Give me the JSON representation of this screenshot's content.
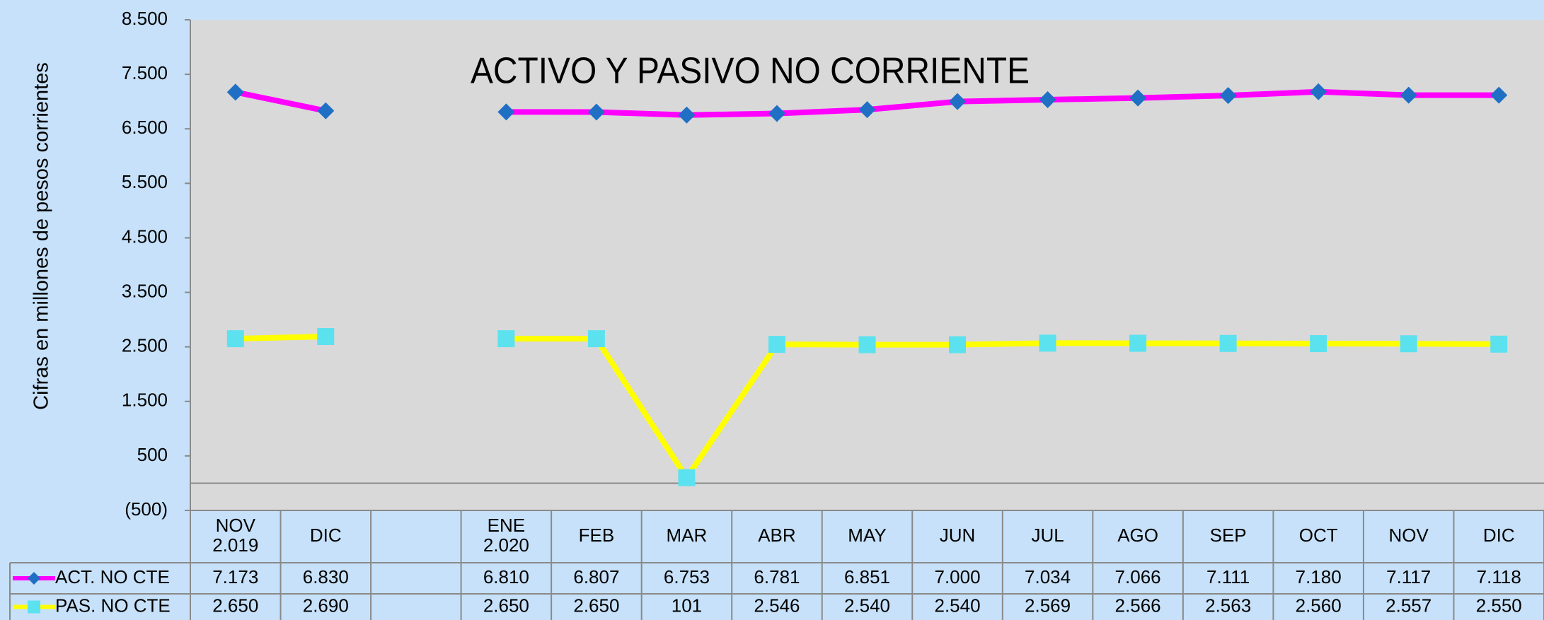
{
  "chart_data": {
    "type": "line",
    "title": "ACTIVO Y PASIVO NO CORRIENTE",
    "ylabel": "Cifras en millones de pesos corrientes",
    "categories": [
      "NOV\n2.019",
      "DIC",
      null,
      "ENE\n2.020",
      "FEB",
      "MAR",
      "ABR",
      "MAY",
      "JUN",
      "JUL",
      "AGO",
      "SEP",
      "OCT",
      "NOV",
      "DIC"
    ],
    "series": [
      {
        "name": "ACT. NO CTE",
        "color": "#ff00ff",
        "marker_color": "#1f6fc4",
        "marker": "diamond",
        "values": [
          7173,
          6830,
          null,
          6810,
          6807,
          6753,
          6781,
          6851,
          7000,
          7034,
          7066,
          7111,
          7180,
          7117,
          7118
        ],
        "value_labels": [
          "7.173",
          "6.830",
          null,
          "6.810",
          "6.807",
          "6.753",
          "6.781",
          "6.851",
          "7.000",
          "7.034",
          "7.066",
          "7.111",
          "7.180",
          "7.117",
          "7.118"
        ]
      },
      {
        "name": "PAS. NO CTE",
        "color": "#ffff00",
        "marker_color": "#5ce1ef",
        "marker": "square",
        "values": [
          2650,
          2690,
          null,
          2650,
          2650,
          101,
          2546,
          2540,
          2540,
          2569,
          2566,
          2563,
          2560,
          2557,
          2550
        ],
        "value_labels": [
          "2.650",
          "2.690",
          null,
          "2.650",
          "2.650",
          "101",
          "2.546",
          "2.540",
          "2.540",
          "2.569",
          "2.566",
          "2.563",
          "2.560",
          "2.557",
          "2.550"
        ]
      }
    ],
    "ylim": [
      -500,
      8500
    ],
    "yticks": [
      {
        "value": -500,
        "label": "(500)"
      },
      500,
      {
        "value": 1500,
        "label": "1.500"
      },
      {
        "value": 2500,
        "label": "2.500"
      },
      {
        "value": 3500,
        "label": "3.500"
      },
      {
        "value": 4500,
        "label": "4.500"
      },
      {
        "value": 5500,
        "label": "5.500"
      },
      {
        "value": 6500,
        "label": "6.500"
      },
      {
        "value": 7500,
        "label": "7.500"
      },
      {
        "value": 8500,
        "label": "8.500"
      }
    ]
  }
}
